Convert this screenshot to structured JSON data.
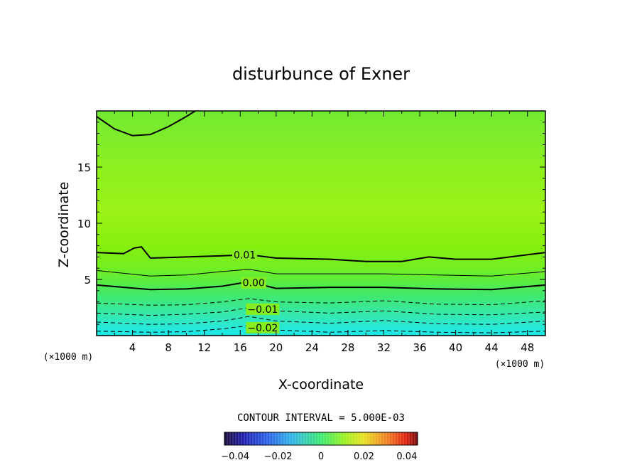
{
  "chart_data": {
    "type": "heatmap",
    "title": "disturbunce of Exner",
    "xlabel": "X-coordinate",
    "ylabel": "Z-coordinate",
    "x_unit": "(×1000 m)",
    "y_unit": "(×1000 m)",
    "xlim": [
      0,
      50
    ],
    "ylim": [
      0,
      20
    ],
    "x_ticks": [
      4,
      8,
      12,
      16,
      20,
      24,
      28,
      32,
      36,
      40,
      44,
      48
    ],
    "y_ticks": [
      5,
      10,
      15
    ],
    "contour_interval_text": "CONTOUR INTERVAL = 5.000E-03",
    "colorbar": {
      "range": [
        -0.045,
        0.045
      ],
      "ticks": [
        -0.04,
        -0.02,
        0,
        0.02,
        0.04
      ],
      "tick_labels": [
        "−0.04",
        "−0.02",
        "0",
        "0.02",
        "0.04"
      ]
    },
    "contours": [
      {
        "level": -0.02,
        "label": "−0.02",
        "label_x": 18.5,
        "style": "dashed",
        "x": [
          0,
          6,
          10,
          14,
          17,
          20,
          26,
          32,
          38,
          44,
          50
        ],
        "y": [
          0.4,
          0.3,
          0.35,
          0.6,
          0.9,
          0.5,
          0.3,
          0.45,
          0.3,
          0.25,
          0.4
        ]
      },
      {
        "level": -0.015,
        "label": "",
        "style": "dashed",
        "x": [
          0,
          6,
          10,
          14,
          17,
          20,
          26,
          32,
          38,
          44,
          50
        ],
        "y": [
          1.2,
          1.0,
          1.05,
          1.3,
          1.7,
          1.3,
          1.1,
          1.35,
          1.05,
          1.0,
          1.3
        ]
      },
      {
        "level": -0.01,
        "label": "−0.01",
        "label_x": 18.5,
        "style": "dashed",
        "x": [
          0,
          6,
          10,
          14,
          17,
          20,
          26,
          32,
          38,
          44,
          50
        ],
        "y": [
          2.0,
          1.8,
          1.9,
          2.1,
          2.5,
          2.2,
          2.0,
          2.2,
          1.9,
          1.85,
          2.1
        ]
      },
      {
        "level": -0.005,
        "label": "",
        "style": "dashed",
        "x": [
          0,
          6,
          10,
          14,
          17,
          20,
          26,
          32,
          38,
          44,
          50
        ],
        "y": [
          2.9,
          2.7,
          2.75,
          3.0,
          3.3,
          3.0,
          2.9,
          3.1,
          2.8,
          2.75,
          3.1
        ]
      },
      {
        "level": 0.0,
        "label": "0.00",
        "label_x": 17.5,
        "style": "solid-thick",
        "x": [
          0,
          6,
          10,
          14,
          17,
          20,
          26,
          32,
          38,
          44,
          50
        ],
        "y": [
          4.5,
          4.1,
          4.15,
          4.4,
          4.8,
          4.2,
          4.3,
          4.3,
          4.15,
          4.1,
          4.5
        ]
      },
      {
        "level": 0.005,
        "label": "",
        "style": "solid-thin",
        "x": [
          0,
          6,
          10,
          14,
          17,
          20,
          26,
          32,
          38,
          44,
          50
        ],
        "y": [
          5.8,
          5.3,
          5.4,
          5.7,
          5.9,
          5.5,
          5.5,
          5.5,
          5.4,
          5.3,
          5.7
        ]
      },
      {
        "level": 0.01,
        "label": "0.01",
        "label_x": 16.5,
        "style": "solid-thick",
        "x": [
          0,
          3,
          4.2,
          5,
          6,
          10,
          14,
          17,
          20,
          26,
          30,
          34,
          37,
          40,
          44,
          50
        ],
        "y": [
          7.4,
          7.3,
          7.8,
          7.9,
          6.9,
          7.0,
          7.1,
          7.2,
          6.9,
          6.8,
          6.6,
          6.6,
          7.0,
          6.8,
          6.8,
          7.4
        ]
      },
      {
        "level": 0.01,
        "label": "",
        "style": "solid-thick",
        "x": [
          0,
          2,
          4,
          6,
          8,
          10,
          11
        ],
        "y": [
          19.5,
          18.4,
          17.8,
          17.9,
          18.6,
          19.5,
          20.0
        ]
      }
    ]
  }
}
